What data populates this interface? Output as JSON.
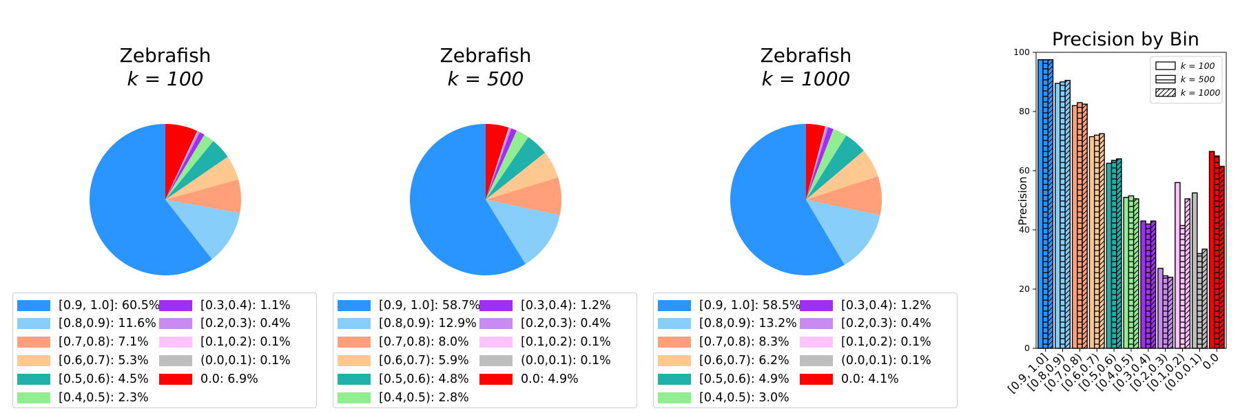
{
  "bins": [
    {
      "label": "[0.9, 1.0]",
      "color": "#2b95ff"
    },
    {
      "label": "[0.8,0.9)",
      "color": "#87cefa"
    },
    {
      "label": "[0.7,0.8)",
      "color": "#ffa07a"
    },
    {
      "label": "[0.6,0.7)",
      "color": "#ffc890"
    },
    {
      "label": "[0.5,0.6)",
      "color": "#20b2aa"
    },
    {
      "label": "[0.4,0.5)",
      "color": "#90ee90"
    },
    {
      "label": "[0.3,0.4)",
      "color": "#a02ff0"
    },
    {
      "label": "[0.2,0.3)",
      "color": "#c88cf0"
    },
    {
      "label": "[0.1,0.2)",
      "color": "#ffc3ff"
    },
    {
      "label": "(0.0,0.1)",
      "color": "#bebebe"
    },
    {
      "label": "0.0",
      "color": "#ff0000"
    }
  ],
  "chart_data": [
    {
      "type": "pie",
      "title": "Zebrafish",
      "subtitle": "k = 100",
      "slices": [
        60.5,
        11.6,
        7.1,
        5.3,
        4.5,
        2.3,
        1.1,
        0.4,
        0.1,
        0.1,
        6.9
      ],
      "legend": [
        "[0.9, 1.0]: 60.5%",
        "[0.8,0.9): 11.6%",
        "[0.7,0.8): 7.1%",
        "[0.6,0.7): 5.3%",
        "[0.5,0.6): 4.5%",
        "[0.4,0.5): 2.3%",
        "[0.3,0.4): 1.1%",
        "[0.2,0.3): 0.4%",
        "[0.1,0.2): 0.1%",
        "(0.0,0.1): 0.1%",
        "0.0: 6.9%"
      ]
    },
    {
      "type": "pie",
      "title": "Zebrafish",
      "subtitle": "k = 500",
      "slices": [
        58.7,
        12.9,
        8.0,
        5.9,
        4.8,
        2.8,
        1.2,
        0.4,
        0.1,
        0.1,
        4.9
      ],
      "legend": [
        "[0.9, 1.0]: 58.7%",
        "[0.8,0.9): 12.9%",
        "[0.7,0.8): 8.0%",
        "[0.6,0.7): 5.9%",
        "[0.5,0.6): 4.8%",
        "[0.4,0.5): 2.8%",
        "[0.3,0.4): 1.2%",
        "[0.2,0.3): 0.4%",
        "[0.1,0.2): 0.1%",
        "(0.0,0.1): 0.1%",
        "0.0: 4.9%"
      ]
    },
    {
      "type": "pie",
      "title": "Zebrafish",
      "subtitle": "k = 1000",
      "slices": [
        58.5,
        13.2,
        8.3,
        6.2,
        4.9,
        3.0,
        1.2,
        0.4,
        0.1,
        0.1,
        4.1
      ],
      "legend": [
        "[0.9, 1.0]: 58.5%",
        "[0.8,0.9): 13.2%",
        "[0.7,0.8): 8.3%",
        "[0.6,0.7): 6.2%",
        "[0.5,0.6): 4.9%",
        "[0.4,0.5): 3.0%",
        "[0.3,0.4): 1.2%",
        "[0.2,0.3): 0.4%",
        "[0.1,0.2): 0.1%",
        "(0.0,0.1): 0.1%",
        "0.0: 4.1%"
      ]
    },
    {
      "type": "bar",
      "title": "Precision by Bin",
      "ylabel": "Precision",
      "xlabel": "",
      "ylim": [
        0,
        100
      ],
      "yticks": [
        0,
        20,
        40,
        60,
        80,
        100
      ],
      "categories": [
        "[0.9, 1.0]",
        "[0.8,0.9)",
        "[0.7,0.8)",
        "[0.6,0.7)",
        "[0.5,0.6)",
        "[0.4,0.5)",
        "[0.3,0.4)",
        "[0.2,0.3)",
        "[0.1,0.2)",
        "(0.0,0.1)",
        "0.0"
      ],
      "series": [
        {
          "name": "k = 100",
          "hatch": "none",
          "values": [
            97.5,
            89.5,
            82.0,
            71.5,
            62.5,
            51.0,
            43.0,
            27.0,
            56.0,
            52.5,
            66.5
          ]
        },
        {
          "name": "k = 500",
          "hatch": "horizontal",
          "values": [
            97.5,
            90.0,
            83.0,
            72.0,
            63.5,
            51.5,
            42.0,
            24.5,
            41.5,
            32.0,
            65.0
          ]
        },
        {
          "name": "k = 1000",
          "hatch": "diagonal",
          "values": [
            97.5,
            90.5,
            82.5,
            72.5,
            64.0,
            50.5,
            43.0,
            24.0,
            50.5,
            33.5,
            61.5
          ]
        }
      ],
      "legend_position": "upper right"
    }
  ]
}
